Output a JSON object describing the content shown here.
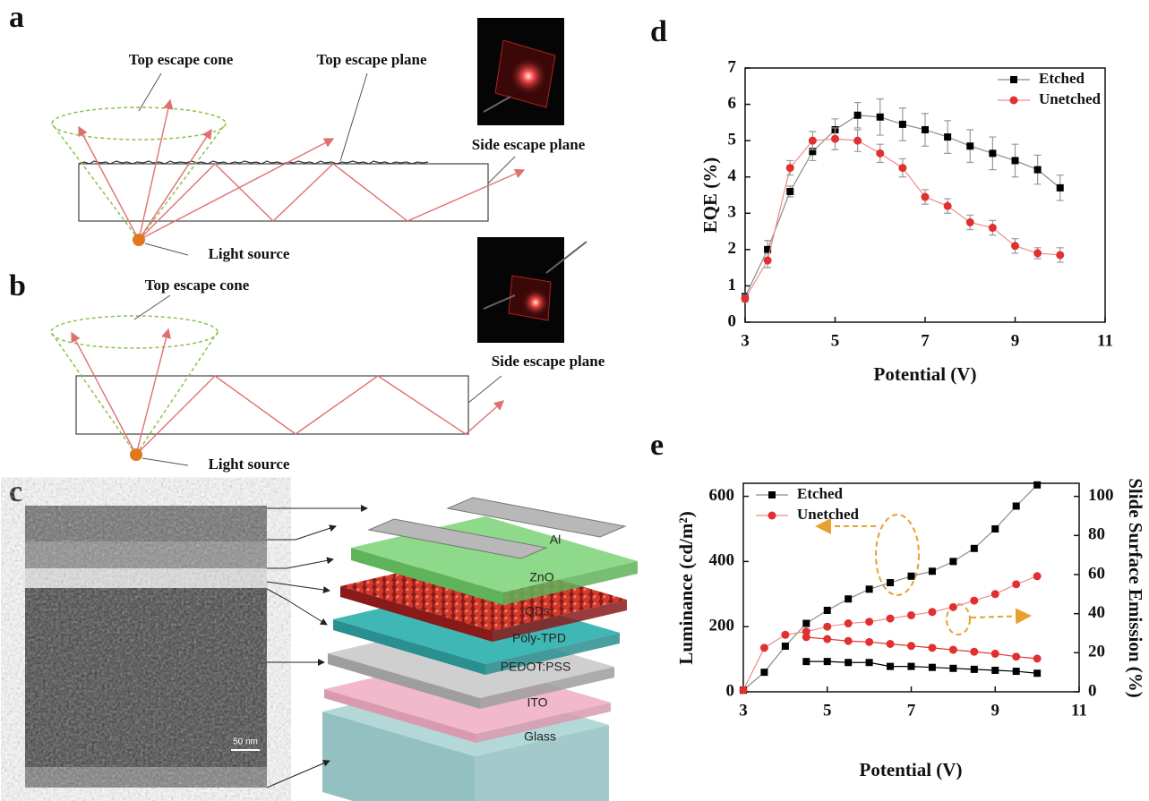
{
  "panel_labels": [
    "a",
    "b",
    "c",
    "d",
    "e"
  ],
  "panel_a": {
    "top_escape_cone": "Top escape cone",
    "top_escape_plane": "Top escape plane",
    "side_escape_plane": "Side escape plane",
    "light_source": "Light source"
  },
  "panel_b": {
    "top_escape_cone": "Top escape cone",
    "side_escape_plane": "Side escape plane",
    "light_source": "Light source"
  },
  "panel_c": {
    "layers": [
      "Al",
      "ZnO",
      "QDs",
      "Poly-TPD",
      "PEDOT:PSS",
      "ITO",
      "Glass"
    ],
    "scale_bar": "50 nm"
  },
  "chart_data": [
    {
      "type": "line",
      "xlabel": "Potential (V)",
      "ylabel": "EQE (%)",
      "x": [
        3,
        3.5,
        4,
        4.5,
        5,
        5.5,
        6,
        6.5,
        7,
        7.5,
        8,
        8.5,
        9,
        9.5,
        10
      ],
      "xlim": [
        3,
        11
      ],
      "xticks": [
        3,
        5,
        7,
        9,
        11
      ],
      "ylim": [
        0,
        7
      ],
      "yticks": [
        0,
        1,
        2,
        3,
        4,
        5,
        6,
        7
      ],
      "legend": "upper right",
      "error_color": "#999999",
      "series": [
        {
          "name": "Etched",
          "color": "#000000",
          "line_color": "#8a8a8a",
          "marker": "square",
          "values": [
            0.7,
            2.0,
            3.6,
            4.7,
            5.3,
            5.7,
            5.65,
            5.45,
            5.3,
            5.1,
            4.85,
            4.65,
            4.45,
            4.2,
            3.7
          ],
          "errors": [
            0.1,
            0.25,
            0.15,
            0.25,
            0.3,
            0.35,
            0.5,
            0.45,
            0.45,
            0.45,
            0.45,
            0.45,
            0.45,
            0.4,
            0.35
          ]
        },
        {
          "name": "Unetched",
          "color": "#e03030",
          "line_color": "#f08a8a",
          "marker": "circle",
          "values": [
            0.65,
            1.7,
            4.25,
            5.0,
            5.05,
            5.0,
            4.65,
            4.25,
            3.45,
            3.2,
            2.75,
            2.6,
            2.1,
            1.9,
            1.85
          ],
          "errors": [
            0.1,
            0.2,
            0.2,
            0.25,
            0.3,
            0.3,
            0.25,
            0.25,
            0.2,
            0.2,
            0.2,
            0.2,
            0.2,
            0.15,
            0.2
          ]
        }
      ]
    },
    {
      "type": "line",
      "xlabel": "Potential (V)",
      "ylabel": "Luminance (cd/m²)",
      "y2label": "Slide Surface Emission (%)",
      "xlim": [
        3,
        11
      ],
      "xticks": [
        3,
        5,
        7,
        9,
        11
      ],
      "ylim": [
        0,
        640
      ],
      "yticks": [
        0,
        200,
        400,
        600
      ],
      "y2lim": [
        0,
        106.7
      ],
      "y2ticks": [
        0,
        20,
        40,
        60,
        80,
        100
      ],
      "legend": "upper left",
      "series": [
        {
          "name": "Etched",
          "color": "#000000",
          "line_color": "#8a8a8a",
          "marker": "square",
          "x": [
            3,
            3.5,
            4,
            4.5,
            5,
            5.5,
            6,
            6.5,
            7,
            7.5,
            8,
            8.5,
            9,
            9.5,
            10
          ],
          "values": [
            5,
            60,
            140,
            210,
            250,
            285,
            315,
            335,
            355,
            370,
            400,
            440,
            500,
            570,
            635
          ]
        },
        {
          "name": "Unetched",
          "color": "#e03030",
          "line_color": "#f08a8a",
          "marker": "circle",
          "x": [
            3,
            3.5,
            4,
            4.5,
            5,
            5.5,
            6,
            6.5,
            7,
            7.5,
            8,
            8.5,
            9,
            9.5,
            10
          ],
          "values": [
            5,
            135,
            175,
            185,
            200,
            210,
            215,
            225,
            235,
            245,
            260,
            280,
            300,
            330,
            355
          ]
        },
        {
          "color": "#000000",
          "marker": "square",
          "axis": "y2",
          "x": [
            4.5,
            5,
            5.5,
            6,
            6.5,
            7,
            7.5,
            8,
            8.5,
            9,
            9.5,
            10
          ],
          "values": [
            15.5,
            15.5,
            15,
            15,
            13,
            13,
            12.5,
            12,
            11.5,
            11,
            10.5,
            9.5
          ]
        },
        {
          "color": "#e03030",
          "marker": "circle",
          "axis": "y2",
          "x": [
            4.5,
            5,
            5.5,
            6,
            6.5,
            7,
            7.5,
            8,
            8.5,
            9,
            9.5,
            10
          ],
          "values": [
            28,
            27,
            26,
            25.5,
            24.5,
            23.5,
            22.5,
            21.5,
            20.5,
            19.5,
            18,
            17
          ]
        }
      ]
    }
  ]
}
